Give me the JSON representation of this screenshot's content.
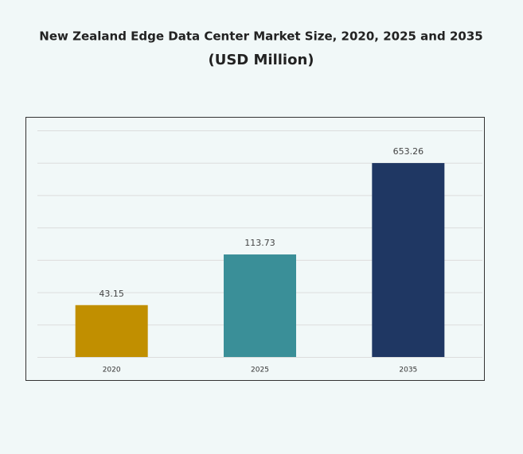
{
  "chart_data": {
    "type": "bar",
    "title": "New Zealand Edge Data Center Market Size, 2020, 2025 and 2035",
    "subtitle": "(USD Million)",
    "categories": [
      "2020",
      "2025",
      "2035"
    ],
    "values": [
      43.15,
      113.73,
      653.26
    ],
    "colors": [
      "#c18f00",
      "#3a8f98",
      "#1f3763"
    ],
    "log_scale": true,
    "ylim": [
      16,
      1220
    ]
  }
}
